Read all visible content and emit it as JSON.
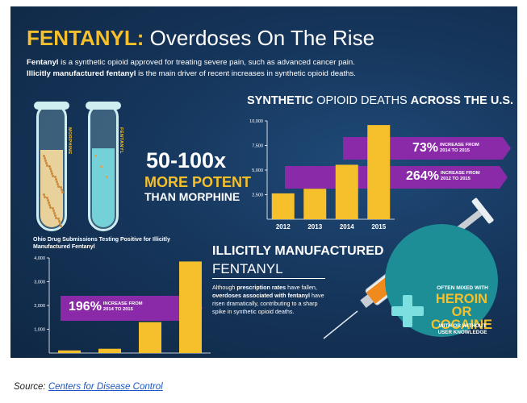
{
  "poster": {
    "title_accent": "FENTANYL:",
    "title_rest": "Overdoses On The Rise",
    "intro_line1_bold": "Fentanyl",
    "intro_line1_rest": " is a synthetic opioid approved for treating severe pain, such as advanced cancer pain.",
    "intro_line2_bold": "Illicitly manufactured fentanyl",
    "intro_line2_rest": " is the main driver of recent increases in synthetic opioid deaths.",
    "tube_left_label": "MORPHINE",
    "tube_right_label": "FENTANYL",
    "potency_big": "50-100x",
    "potency_mid": "MORE POTENT",
    "potency_small": "THAN MORPHINE",
    "us_heading_bold1": "SYNTHETIC",
    "us_heading_mid": " OPIOID DEATHS ",
    "us_heading_bold2": "ACROSS THE U.S.",
    "us_band1_big": "73%",
    "us_band1_small_line1": "INCREASE FROM",
    "us_band1_small_line2": "2014 TO 2015",
    "us_band2_big": "264%",
    "us_band2_small_line1": "INCREASE FROM",
    "us_band2_small_line2": "2012 TO 2015",
    "ohio_title": "Ohio Drug Submissions Testing Positive for Illicitly Manufactured Fentanyl",
    "ohio_band_big": "196%",
    "ohio_band_small_line1": "INCREASE FROM",
    "ohio_band_small_line2": "2014 TO 2015",
    "illicit_heading1": "ILLICITLY MANUFACTURED",
    "illicit_heading2": "FENTANYL",
    "illicit_body_1": "Although ",
    "illicit_body_bold1": "prescription rates",
    "illicit_body_2": " have fallen, ",
    "illicit_body_bold2": "overdoses associated with fentanyl",
    "illicit_body_3": " have risen dramatically, contributing to a sharp spike in synthetic opioid deaths.",
    "mix_line1": "OFTEN MIXED WITH",
    "mix_line2": "HEROIN",
    "mix_line3": "OR COCAINE",
    "mix_line4": "WITH OR WITHOUT",
    "mix_line5": "USER KNOWLEDGE"
  },
  "source": {
    "label": "Source: ",
    "link": "Centers for Disease Control"
  },
  "colors": {
    "accent_yellow": "#f5c02b",
    "band_purple": "#8a2aa8",
    "teal": "#1d8e96"
  },
  "chart_data": [
    {
      "type": "bar",
      "categories": [
        "2012",
        "2013",
        "2014",
        "2015"
      ],
      "values": [
        2630,
        3100,
        5540,
        9580
      ],
      "title": "SYNTHETIC OPIOID DEATHS ACROSS THE U.S.",
      "ylim": [
        0,
        10000
      ],
      "yticks": [
        "2,500",
        "5,000",
        "7,500",
        "10,000"
      ],
      "grid": false
    },
    {
      "type": "bar",
      "categories": [
        "",
        "",
        "",
        ""
      ],
      "values": [
        110,
        180,
        1300,
        3850
      ],
      "title": "Ohio Drug Submissions Testing Positive for Illicitly Manufactured Fentanyl",
      "ylim": [
        0,
        4000
      ],
      "yticks": [
        "1,000",
        "2,000",
        "3,000",
        "4,000"
      ],
      "grid": false
    }
  ]
}
